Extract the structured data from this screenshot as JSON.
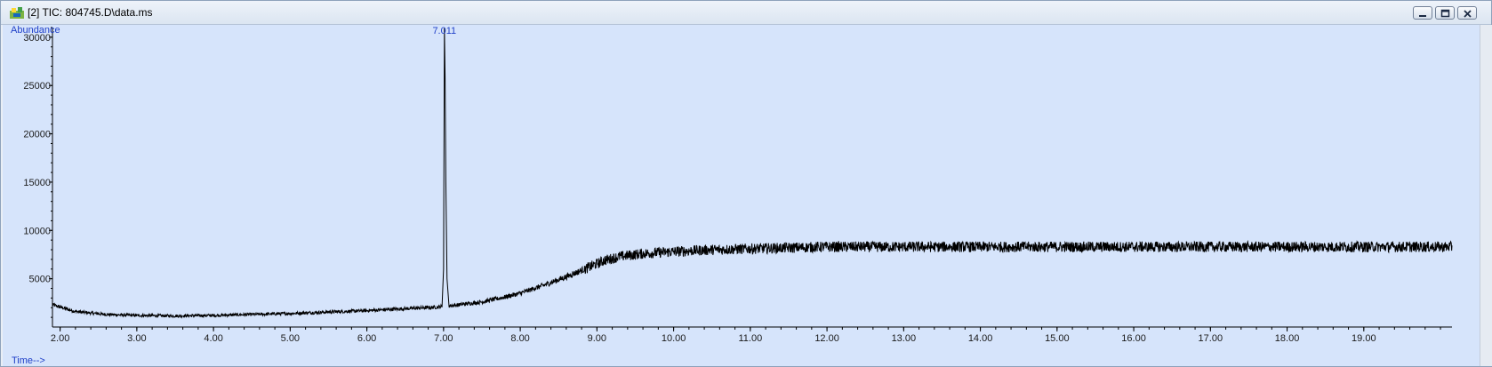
{
  "window": {
    "title": "[2] TIC: 804745.D\\data.ms",
    "icon": "chromatogram-icon",
    "buttons": {
      "minimize": "minimize-icon",
      "restore": "restore-icon",
      "close": "close-icon"
    }
  },
  "colors": {
    "plot_background": "#d6e4fb",
    "trace": "#000000",
    "axis_label": "#1f3fc8"
  },
  "chart_data": {
    "type": "line",
    "xlabel": "Time-->",
    "ylabel": "Abundance",
    "xlim": [
      1.9,
      20.15
    ],
    "ylim": [
      0,
      31000
    ],
    "x_ticks": [
      "2.00",
      "3.00",
      "4.00",
      "5.00",
      "6.00",
      "7.00",
      "8.00",
      "9.00",
      "10.00",
      "11.00",
      "12.00",
      "13.00",
      "14.00",
      "15.00",
      "16.00",
      "17.00",
      "18.00",
      "19.00"
    ],
    "y_ticks": [
      "5000",
      "10000",
      "15000",
      "20000",
      "25000",
      "30000"
    ],
    "grid": false,
    "legend": "none",
    "peak_annotations": [
      {
        "label": "7.011",
        "x": 7.011,
        "y": 31000
      }
    ],
    "baseline_points": [
      [
        1.9,
        2300
      ],
      [
        2.2,
        1600
      ],
      [
        2.6,
        1300
      ],
      [
        3.0,
        1200
      ],
      [
        3.5,
        1150
      ],
      [
        4.0,
        1200
      ],
      [
        4.5,
        1300
      ],
      [
        5.0,
        1400
      ],
      [
        5.5,
        1550
      ],
      [
        6.0,
        1700
      ],
      [
        6.5,
        1900
      ],
      [
        6.9,
        2050
      ],
      [
        7.2,
        2300
      ],
      [
        7.5,
        2600
      ],
      [
        7.8,
        3100
      ],
      [
        8.0,
        3500
      ],
      [
        8.3,
        4300
      ],
      [
        8.6,
        5200
      ],
      [
        8.9,
        6200
      ],
      [
        9.1,
        6900
      ],
      [
        9.3,
        7300
      ],
      [
        9.6,
        7600
      ],
      [
        10.0,
        7800
      ],
      [
        10.5,
        8000
      ],
      [
        11.0,
        8100
      ],
      [
        12.0,
        8300
      ],
      [
        13.0,
        8300
      ],
      [
        14.0,
        8300
      ],
      [
        15.0,
        8300
      ],
      [
        16.0,
        8300
      ],
      [
        17.0,
        8300
      ],
      [
        18.0,
        8300
      ],
      [
        19.0,
        8300
      ],
      [
        20.15,
        8300
      ]
    ],
    "series": [
      {
        "values_peak": [
          [
            6.98,
            2100
          ],
          [
            7.0,
            6000
          ],
          [
            7.011,
            31000
          ],
          [
            7.02,
            26000
          ],
          [
            7.03,
            15000
          ],
          [
            7.045,
            5000
          ],
          [
            7.07,
            2300
          ]
        ]
      }
    ]
  }
}
